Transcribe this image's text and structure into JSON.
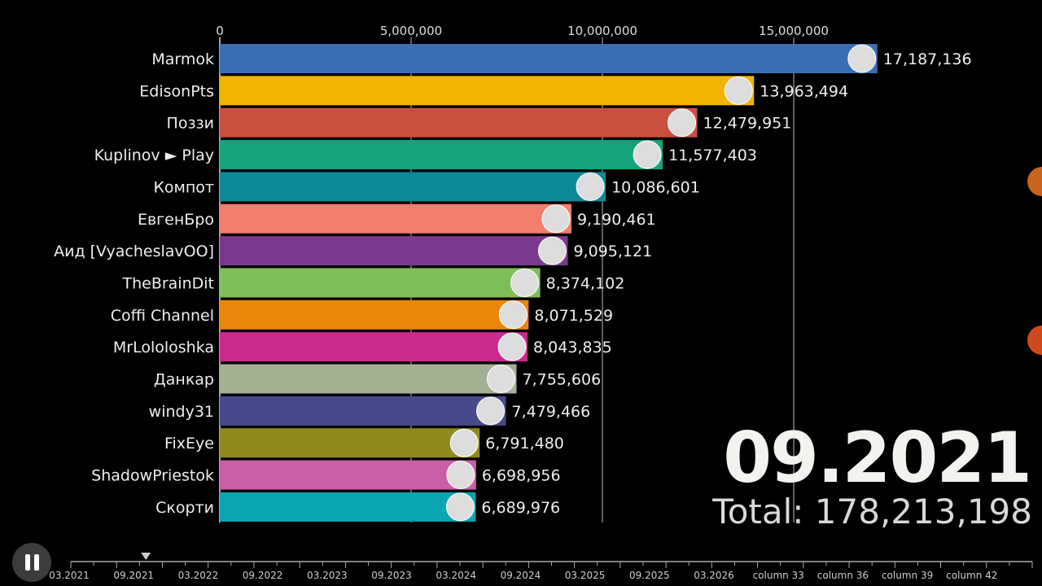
{
  "chart_data": {
    "type": "bar",
    "orientation": "horizontal",
    "categories": [
      "Marmok",
      "EdisonPts",
      "Поззи",
      "Kuplinov ► Play",
      "Компот",
      "ЕвгенБро",
      "Аид [VyacheslavOO]",
      "TheBrainDit",
      "Coffi Channel",
      "MrLololoshka",
      "Данкар",
      "windy31",
      "FixEye",
      "ShadowPriestok",
      "Скорти"
    ],
    "values": [
      17187136,
      13963494,
      12479951,
      11577403,
      10086601,
      9190461,
      9095121,
      8374102,
      8071529,
      8043835,
      7755606,
      7479466,
      6791480,
      6698956,
      6689976
    ],
    "value_labels": [
      "17,187,136",
      "13,963,494",
      "12,479,951",
      "11,577,403",
      "10,086,601",
      "9,190,461",
      "9,095,121",
      "8,374,102",
      "8,071,529",
      "8,043,835",
      "7,755,606",
      "7,479,466",
      "6,791,480",
      "6,698,956",
      "6,689,976"
    ],
    "colors": [
      "#3b6eb0",
      "#f0b400",
      "#c9503f",
      "#14a37a",
      "#0e8a96",
      "#f37e6e",
      "#7a3b8e",
      "#7fbf5a",
      "#e8870c",
      "#cc2a8c",
      "#a4b094",
      "#484a8c",
      "#8e8a1e",
      "#c95fa6",
      "#0aa5b0"
    ],
    "xticks": [
      0,
      5000000,
      10000000,
      15000000
    ],
    "xtick_labels": [
      "0",
      "5,000,000",
      "10,000,000",
      "15,000,000"
    ],
    "xlim": [
      0,
      17200000
    ]
  },
  "date": "09.2021",
  "total": "Total: 178,213,198",
  "timeline": {
    "labels": [
      "03.2021",
      "09.2021",
      "03.2022",
      "09.2022",
      "03.2023",
      "09.2023",
      "03.2024",
      "09.2024",
      "03.2025",
      "09.2025",
      "03.2026",
      "column 33",
      "column 36",
      "column 39",
      "column 42"
    ],
    "current_index": 1
  }
}
